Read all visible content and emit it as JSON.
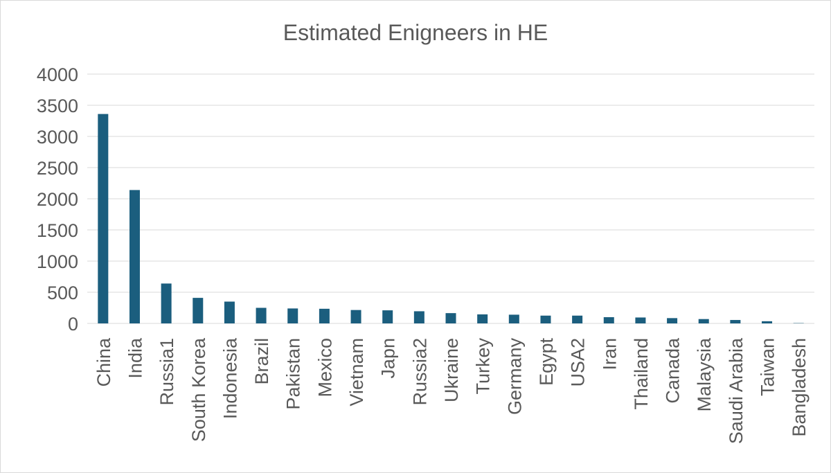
{
  "chart_data": {
    "type": "bar",
    "title": "Estimated Enigneers in HE",
    "xlabel": "",
    "ylabel": "",
    "ylim": [
      0,
      4000
    ],
    "yticks": [
      0,
      500,
      1000,
      1500,
      2000,
      2500,
      3000,
      3500,
      4000
    ],
    "grid": true,
    "legend": "none",
    "bar_color": "#1b5e7e",
    "categories": [
      "China",
      "India",
      "Russia1",
      "South Korea",
      "Indonesia",
      "Brazil",
      "Pakistan",
      "Mexico",
      "Vietnam",
      "Japn",
      "Russia2",
      "Ukraine",
      "Turkey",
      "Germany",
      "Egypt",
      "USA2",
      "Iran",
      "Thailand",
      "Canada",
      "Malaysia",
      "Saudi Arabia",
      "Taiwan",
      "Bangladesh"
    ],
    "values": [
      3360,
      2140,
      640,
      410,
      350,
      250,
      240,
      235,
      215,
      210,
      195,
      165,
      145,
      140,
      125,
      125,
      100,
      95,
      85,
      70,
      55,
      35,
      5
    ]
  }
}
